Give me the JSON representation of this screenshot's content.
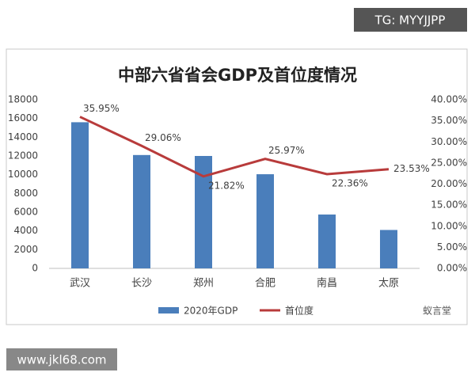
{
  "chart_data": {
    "type": "bar",
    "title": "中部六省省会GDP及首位度情况",
    "categories": [
      "武汉",
      "长沙",
      "郑州",
      "合肥",
      "南昌",
      "太原"
    ],
    "series": [
      {
        "name": "2020年GDP",
        "type": "bar",
        "color": "#4a7ebb",
        "values": [
          15600,
          12100,
          12000,
          10050,
          5750,
          4100
        ]
      },
      {
        "name": "首位度",
        "type": "line",
        "axis": "y2",
        "color": "#b83b3b",
        "values": [
          35.95,
          29.06,
          21.82,
          25.97,
          22.36,
          23.53
        ],
        "value_labels": [
          "35.95%",
          "29.06%",
          "21.82%",
          "25.97%",
          "22.36%",
          "23.53%"
        ]
      }
    ],
    "ylim": [
      0,
      18000
    ],
    "yticks": [
      0,
      2000,
      4000,
      6000,
      8000,
      10000,
      12000,
      14000,
      16000,
      18000
    ],
    "y2lim": [
      0,
      40
    ],
    "y2ticks": [
      {
        "value": 0,
        "label": "0.00%"
      },
      {
        "value": 5,
        "label": "5.00%"
      },
      {
        "value": 10,
        "label": "10.00%"
      },
      {
        "value": 15,
        "label": "15.00%"
      },
      {
        "value": 20,
        "label": "20.00%"
      },
      {
        "value": 25,
        "label": "25.00%"
      },
      {
        "value": 30,
        "label": "30.00%"
      },
      {
        "value": 35,
        "label": "35.00%"
      },
      {
        "value": 40,
        "label": "40.00%"
      }
    ],
    "grid": false,
    "legend": "bottom"
  },
  "overlays": {
    "tag": "TG: MYYJJPP",
    "site": "www.jkl68.com",
    "brand": "蚁言堂"
  }
}
